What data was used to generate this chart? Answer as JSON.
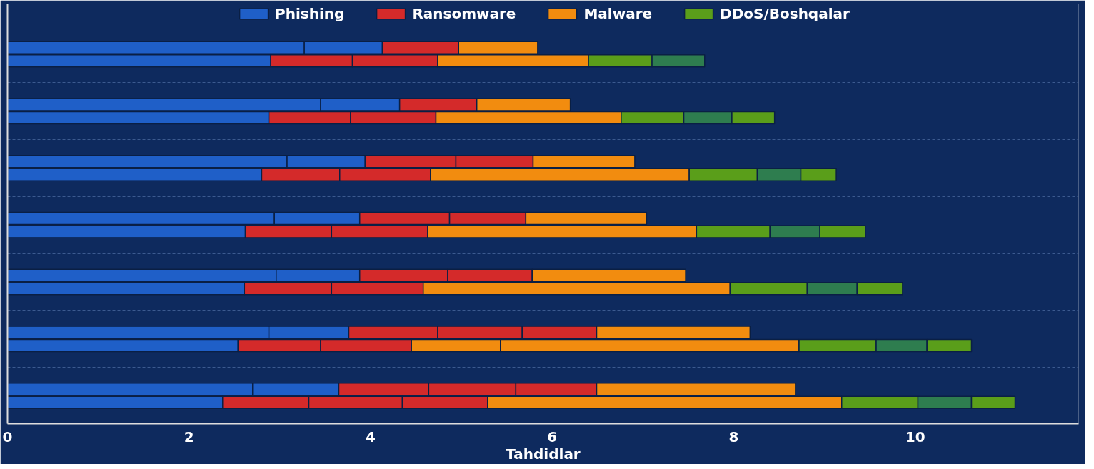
{
  "chart_data": {
    "type": "bar",
    "orientation": "horizontal",
    "stacked": true,
    "xlabel": "Tahdidlar",
    "categories": [
      null,
      null,
      null,
      null,
      null,
      null,
      null,
      null,
      null,
      null,
      null,
      null,
      null,
      null
    ],
    "xlim": [
      0,
      11.8
    ],
    "xticks": [
      0,
      2,
      4,
      6,
      8,
      10
    ],
    "grid": "y",
    "legend": "top",
    "series": [
      {
        "name": "Phishing",
        "color": "#1f5fc8",
        "values": [
          3.27,
          2.9,
          3.45,
          2.88,
          3.08,
          2.8,
          2.94,
          2.62,
          2.96,
          2.61,
          2.88,
          2.54,
          2.7,
          2.37
        ]
      },
      {
        "color": "#1f5fc8",
        "values": [
          0.86,
          null,
          0.87,
          null,
          0.86,
          null,
          0.94,
          null,
          0.92,
          null,
          0.88,
          null,
          0.95,
          null
        ]
      },
      {
        "name": "Ransomware",
        "color": "#d42a2a",
        "values": [
          0.84,
          0.9,
          0.85,
          0.9,
          1.0,
          0.86,
          0.99,
          0.95,
          0.97,
          0.96,
          0.98,
          0.91,
          0.99,
          0.95
        ]
      },
      {
        "color": "#d42a2a",
        "values": [
          null,
          0.94,
          null,
          0.94,
          0.85,
          1.0,
          0.84,
          1.06,
          0.93,
          1.01,
          0.93,
          1.0,
          0.96,
          1.03
        ]
      },
      {
        "color": "#d42a2a",
        "values": [
          null,
          null,
          null,
          null,
          null,
          null,
          null,
          null,
          null,
          null,
          0.82,
          null,
          0.89,
          0.94
        ]
      },
      {
        "name": "Malware",
        "color": "#f28c0f",
        "values": [
          0.87,
          1.66,
          1.03,
          2.04,
          1.12,
          2.85,
          1.33,
          2.96,
          1.69,
          3.38,
          1.69,
          0.98,
          2.19,
          3.9
        ]
      },
      {
        "color": "#f28c0f",
        "values": [
          null,
          null,
          null,
          null,
          null,
          null,
          null,
          null,
          null,
          null,
          null,
          3.29,
          null,
          null
        ]
      },
      {
        "name": "DDoS/Boshqalar",
        "color": "#5a9e1a",
        "values": [
          null,
          0.7,
          null,
          0.69,
          null,
          0.75,
          null,
          0.81,
          null,
          0.85,
          null,
          0.85,
          null,
          0.84
        ]
      },
      {
        "color": "#2e7d4f",
        "values": [
          null,
          0.58,
          null,
          0.53,
          null,
          0.48,
          null,
          0.55,
          null,
          0.55,
          null,
          0.56,
          null,
          0.59
        ]
      },
      {
        "color": "#5a9e1a",
        "values": [
          null,
          null,
          null,
          0.47,
          null,
          0.39,
          null,
          0.5,
          null,
          0.5,
          null,
          0.49,
          null,
          0.48
        ]
      }
    ]
  }
}
